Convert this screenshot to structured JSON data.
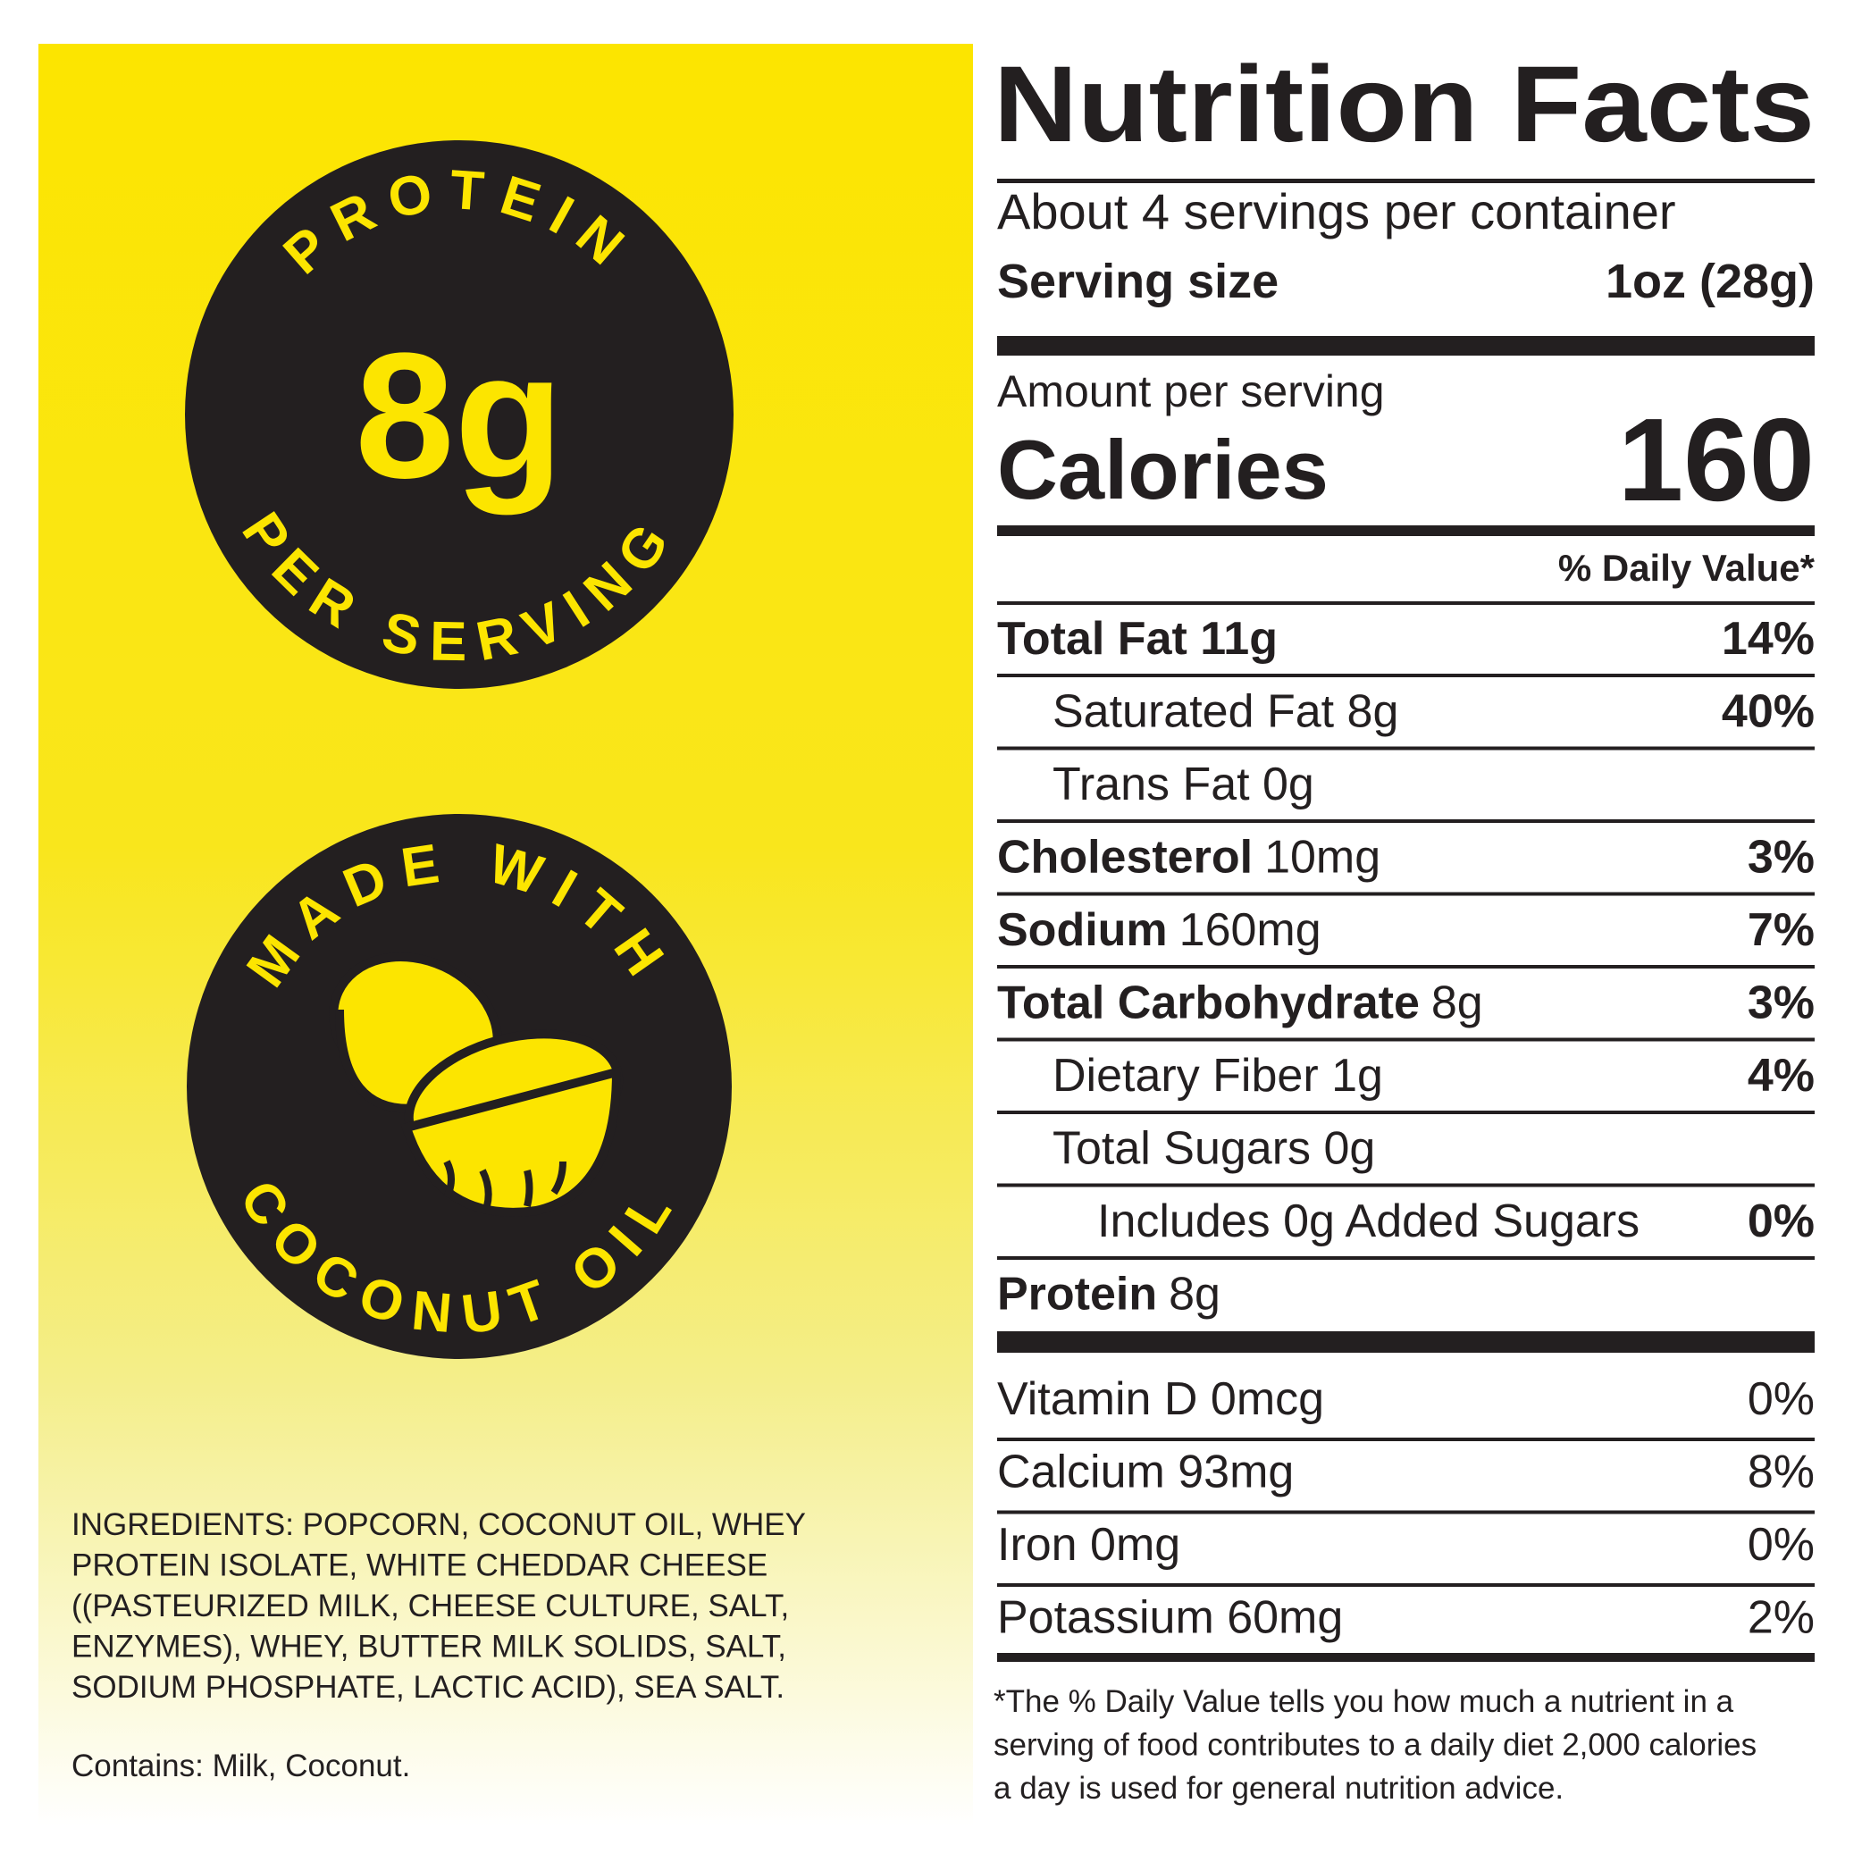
{
  "badges": [
    {
      "top": "PROTEIN",
      "center": "8g",
      "bottom": "PER SERVING"
    },
    {
      "top": "MADE WITH",
      "bottom": "COCONUT OIL"
    }
  ],
  "ingredients": [
    "INGREDIENTS: POPCORN, COCONUT OIL, WHEY",
    "PROTEIN ISOLATE, WHITE CHEDDAR CHEESE",
    "((PASTEURIZED MILK, CHEESE CULTURE, SALT,",
    "ENZYMES), WHEY, BUTTER MILK SOLIDS, SALT,",
    "SODIUM PHOSPHATE, LACTIC ACID), SEA SALT."
  ],
  "contains": "Contains: Milk, Coconut.",
  "nutrition": {
    "title": "Nutrition Facts",
    "servings": "About 4 servings per container",
    "serving_size_label": "Serving size",
    "serving_size": "1oz (28g)",
    "amount_label": "Amount per serving",
    "calories_label": "Calories",
    "calories": "160",
    "dv_header": "% Daily Value*",
    "rows": [
      {
        "name": "Total Fat 11g",
        "dv": "14%",
        "sub": [
          {
            "name": "Saturated Fat 8g",
            "dv": "40%"
          },
          {
            "name": "Trans Fat 0g"
          }
        ]
      },
      {
        "name": "Cholesterol",
        "amount": "10mg",
        "dv": "3%"
      },
      {
        "name": "Sodium",
        "amount": "160mg",
        "dv": "7%"
      },
      {
        "name": "Total Carbohydrate",
        "amount": "8g",
        "dv": "3%",
        "sub": [
          {
            "name": "Dietary Fiber 1g",
            "dv": "4%"
          },
          {
            "name": "Total Sugars 0g",
            "sub": [
              {
                "name": "Includes 0g Added Sugars",
                "dv": "0%"
              }
            ]
          }
        ]
      },
      {
        "name": "Protein",
        "amount": "8g"
      }
    ],
    "vitamins": [
      {
        "name": "Vitamin D 0mcg",
        "dv": "0%"
      },
      {
        "name": "Calcium 93mg",
        "dv": "8%"
      },
      {
        "name": "Iron 0mg",
        "dv": "0%"
      },
      {
        "name": "Potassium 60mg",
        "dv": "2%"
      }
    ],
    "footnote": [
      "*The % Daily Value tells you how much a nutrient in a",
      "serving of food contributes to a daily diet 2,000 calories",
      "a day is used for general nutrition advice."
    ]
  }
}
